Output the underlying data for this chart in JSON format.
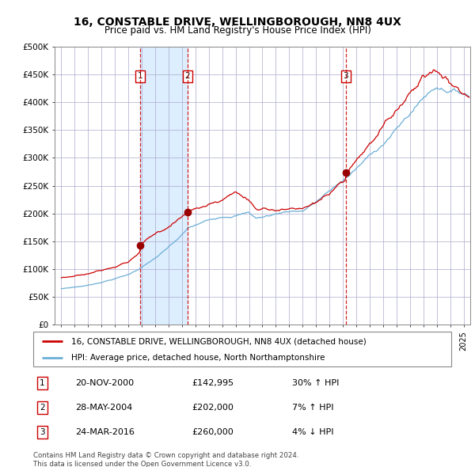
{
  "title": "16, CONSTABLE DRIVE, WELLINGBOROUGH, NN8 4UX",
  "subtitle": "Price paid vs. HM Land Registry's House Price Index (HPI)",
  "legend_line1": "16, CONSTABLE DRIVE, WELLINGBOROUGH, NN8 4UX (detached house)",
  "legend_line2": "HPI: Average price, detached house, North Northamptonshire",
  "transactions": [
    {
      "num": 1,
      "date": "20-NOV-2000",
      "price": 142995,
      "pct": "30%",
      "dir": "↑",
      "x_year": 2000.89
    },
    {
      "num": 2,
      "date": "28-MAY-2004",
      "price": 202000,
      "pct": "7%",
      "dir": "↑",
      "x_year": 2004.41
    },
    {
      "num": 3,
      "date": "24-MAR-2016",
      "price": 260000,
      "pct": "4%",
      "dir": "↓",
      "x_year": 2016.22
    }
  ],
  "shade_regions": [
    [
      2000.89,
      2004.41
    ]
  ],
  "hpi_color": "#6baed6",
  "price_color": "#cc0000",
  "shade_color": "#ddeeff",
  "vline_color": "#cc0000",
  "grid_color": "#aaaacc",
  "background_color": "#ffffff",
  "ylim": [
    0,
    500000
  ],
  "yticks": [
    0,
    50000,
    100000,
    150000,
    200000,
    250000,
    300000,
    350000,
    400000,
    450000,
    500000
  ],
  "xlim_start": 1994.5,
  "xlim_end": 2025.5,
  "footer": "Contains HM Land Registry data © Crown copyright and database right 2024.\nThis data is licensed under the Open Government Licence v3.0."
}
